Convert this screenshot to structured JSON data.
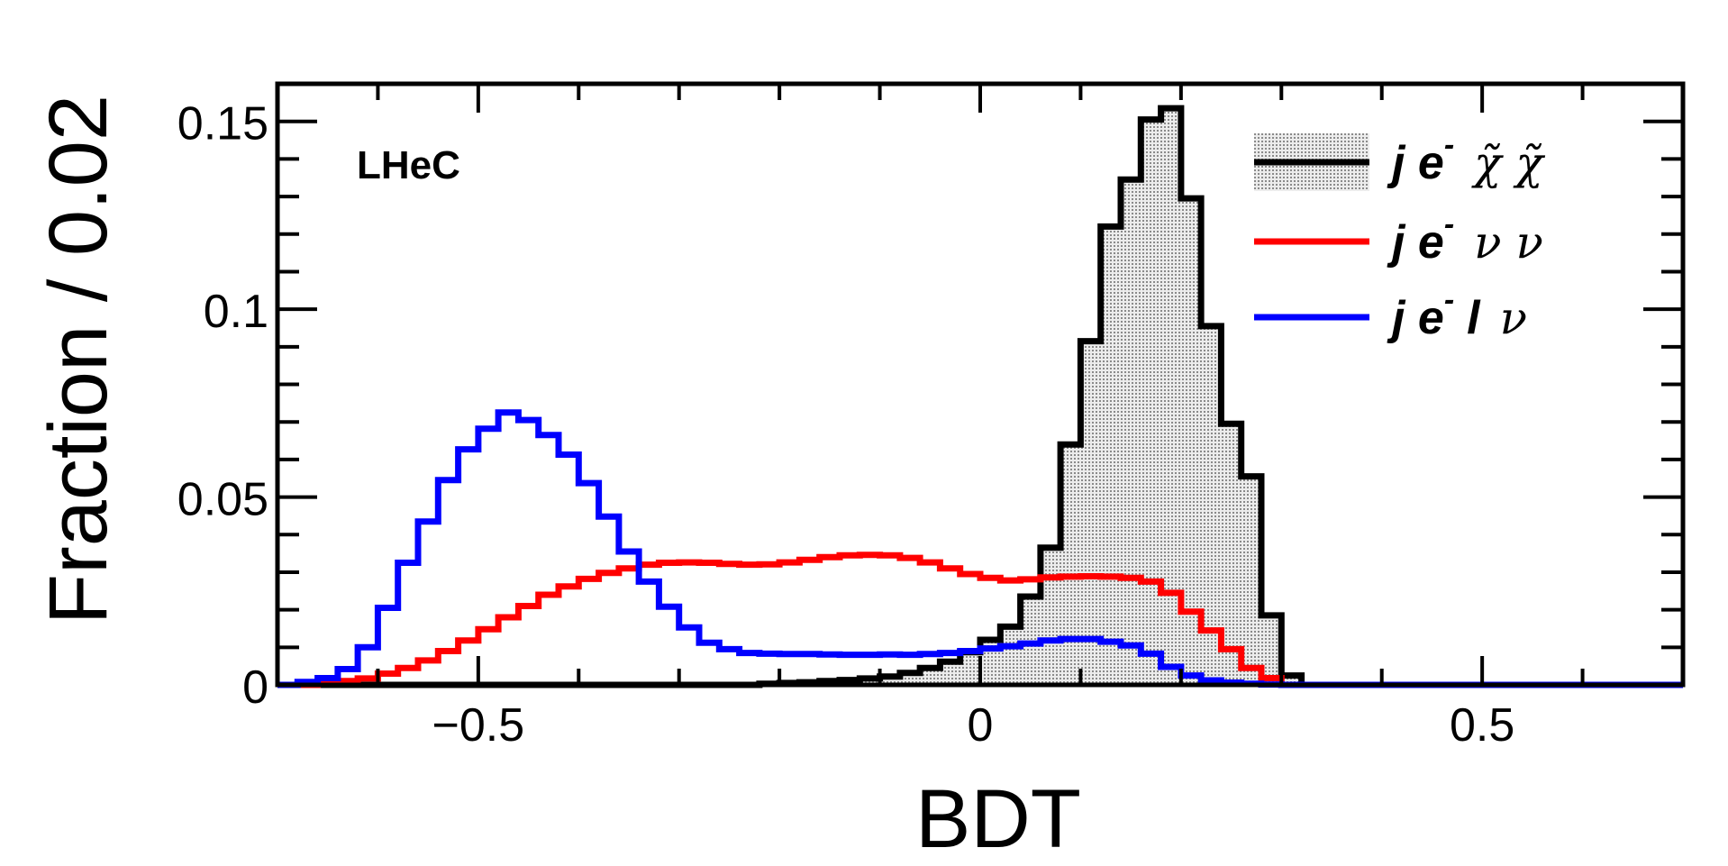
{
  "chart_data": {
    "type": "histogram",
    "experiment_label": "LHeC",
    "xlabel": "BDT",
    "ylabel": "Fraction / 0.02",
    "xlim": [
      -0.7,
      0.7
    ],
    "ylim": [
      0,
      0.16
    ],
    "bin_width": 0.02,
    "x_ticks": [
      {
        "value": -0.5,
        "label": "−0.5"
      },
      {
        "value": 0,
        "label": "0"
      },
      {
        "value": 0.5,
        "label": "0.5"
      }
    ],
    "y_ticks": [
      {
        "value": 0,
        "label": "0"
      },
      {
        "value": 0.05,
        "label": "0.05"
      },
      {
        "value": 0.1,
        "label": "0.1"
      },
      {
        "value": 0.15,
        "label": "0.15"
      }
    ],
    "legend_position": "top-right",
    "series": [
      {
        "legend": {
          "main": "j e",
          "sup": "-",
          "tail": "χ̃ χ̃"
        },
        "color": "#000000",
        "fill": "#d4d4d4",
        "style": "filled-histogram",
        "bin_edges_start": -0.7,
        "values": [
          0,
          0,
          0,
          0,
          0,
          0,
          0,
          0,
          0,
          0,
          0,
          0,
          0,
          0,
          0,
          0,
          0,
          0,
          0,
          0,
          0,
          0,
          0,
          0,
          0.0003,
          0.0005,
          0.0007,
          0.001,
          0.0013,
          0.0017,
          0.0022,
          0.0032,
          0.0045,
          0.0062,
          0.0087,
          0.012,
          0.0155,
          0.0235,
          0.0365,
          0.064,
          0.0915,
          0.122,
          0.1345,
          0.1505,
          0.1535,
          0.1295,
          0.0955,
          0.0695,
          0.0555,
          0.0185,
          0.0025,
          0,
          0,
          0,
          0,
          0,
          0,
          0,
          0,
          0,
          0,
          0,
          0,
          0,
          0,
          0,
          0,
          0,
          0,
          0
        ]
      },
      {
        "legend": {
          "main": "j e",
          "sup": "-",
          "tail": "ν ν"
        },
        "color": "#ff0000",
        "style": "line-histogram",
        "bin_edges_start": -0.7,
        "values": [
          0,
          0,
          0.0005,
          0.001,
          0.0017,
          0.003,
          0.0045,
          0.0065,
          0.009,
          0.0118,
          0.0148,
          0.018,
          0.021,
          0.024,
          0.0262,
          0.0282,
          0.0298,
          0.031,
          0.032,
          0.0325,
          0.0326,
          0.0325,
          0.0322,
          0.032,
          0.0321,
          0.0326,
          0.0333,
          0.034,
          0.0345,
          0.0346,
          0.0345,
          0.0338,
          0.0326,
          0.031,
          0.0295,
          0.0285,
          0.0278,
          0.0281,
          0.0286,
          0.0288,
          0.0289,
          0.0288,
          0.0285,
          0.0275,
          0.0245,
          0.0195,
          0.0145,
          0.0095,
          0.0045,
          0.0018,
          0,
          0,
          0,
          0,
          0,
          0,
          0,
          0,
          0,
          0,
          0,
          0,
          0,
          0,
          0,
          0,
          0,
          0,
          0,
          0
        ]
      },
      {
        "legend": {
          "main": "j e",
          "sup": "-",
          "tail2": "l",
          "tail": "ν"
        },
        "color": "#0000ff",
        "style": "line-histogram",
        "bin_edges_start": -0.7,
        "values": [
          0,
          0.0008,
          0.0018,
          0.0042,
          0.01,
          0.0205,
          0.0325,
          0.0435,
          0.0545,
          0.0627,
          0.0682,
          0.0725,
          0.0705,
          0.0665,
          0.0613,
          0.0537,
          0.0448,
          0.0355,
          0.0275,
          0.0208,
          0.0153,
          0.0112,
          0.0095,
          0.0085,
          0.0083,
          0.0082,
          0.0082,
          0.0081,
          0.008,
          0.008,
          0.0081,
          0.008,
          0.0082,
          0.0085,
          0.009,
          0.0097,
          0.0103,
          0.011,
          0.0118,
          0.0122,
          0.0122,
          0.0115,
          0.0105,
          0.0083,
          0.0048,
          0.0025,
          0.0012,
          0.0006,
          0.0003,
          0.0001,
          0,
          0,
          0,
          0,
          0,
          0,
          0,
          0,
          0,
          0,
          0,
          0,
          0,
          0,
          0,
          0,
          0,
          0,
          0,
          0
        ]
      }
    ]
  }
}
